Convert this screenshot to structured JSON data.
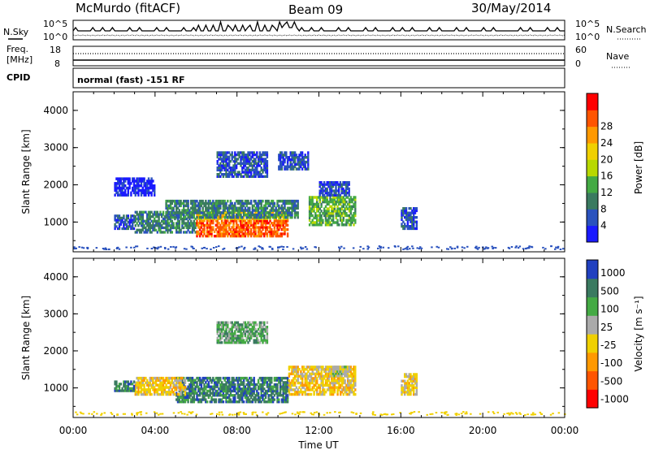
{
  "header": {
    "station": "McMurdo (fitACF)",
    "beam": "Beam 09",
    "date": "30/May/2014",
    "nsky_label": "N.Sky",
    "nsearch_label": "N.Search",
    "freq_label_1": "Freq.",
    "freq_label_2": "[MHz]",
    "nave_label": "Nave",
    "cpid_label": "CPID",
    "cpid_value": "normal (fast) -151 RF",
    "noise_left_top": "10^5",
    "noise_left_bottom": "10^0",
    "noise_right_top": "10^5",
    "noise_right_bottom": "10^0",
    "freq_left_top": "18",
    "freq_left_bottom": "8",
    "nave_right_top": "60",
    "nave_right_bottom": "0"
  },
  "chart_data": [
    {
      "type": "heatmap",
      "name": "power",
      "xlabel": "Time UT",
      "ylabel": "Slant Range [km]",
      "x_range_hours": [
        0,
        24
      ],
      "ylim": [
        200,
        4500
      ],
      "yticks": [
        "1000",
        "2000",
        "3000",
        "4000"
      ],
      "colorbar": {
        "label": "Power [dB]",
        "ticks": [
          "4",
          "8",
          "12",
          "16",
          "20",
          "24",
          "28"
        ],
        "colors": [
          "#1a1aff",
          "#2a52be",
          "#3a7a60",
          "#44aa44",
          "#b8d800",
          "#f0d000",
          "#ff9900",
          "#ff5500",
          "#ff0000"
        ]
      },
      "blobs": [
        {
          "t0": 3.0,
          "t1": 6.0,
          "r0": 700,
          "r1": 1300,
          "level": 2
        },
        {
          "t0": 2.0,
          "t1": 3.0,
          "r0": 800,
          "r1": 1200,
          "level": 1
        },
        {
          "t0": 6.0,
          "t1": 10.5,
          "r0": 600,
          "r1": 1300,
          "level": 7
        },
        {
          "t0": 4.5,
          "t1": 11.0,
          "r0": 1100,
          "r1": 1600,
          "level": 2
        },
        {
          "t0": 11.5,
          "t1": 13.8,
          "r0": 900,
          "r1": 1700,
          "level": 3
        },
        {
          "t0": 12.0,
          "t1": 13.5,
          "r0": 1700,
          "r1": 2100,
          "level": 1
        },
        {
          "t0": 7.0,
          "t1": 9.5,
          "r0": 2200,
          "r1": 2900,
          "level": 1
        },
        {
          "t0": 10.0,
          "t1": 11.5,
          "r0": 2400,
          "r1": 2900,
          "level": 1
        },
        {
          "t0": 16.0,
          "t1": 16.8,
          "r0": 800,
          "r1": 1400,
          "level": 1
        },
        {
          "t0": 2.0,
          "t1": 4.0,
          "r0": 1700,
          "r1": 2200,
          "level": 0
        }
      ]
    },
    {
      "type": "heatmap",
      "name": "velocity",
      "xlabel": "Time UT",
      "ylabel": "Slant Range [km]",
      "x_range_hours": [
        0,
        24
      ],
      "ylim": [
        200,
        4500
      ],
      "yticks": [
        "1000",
        "2000",
        "3000",
        "4000"
      ],
      "xticks": [
        "00:00",
        "04:00",
        "08:00",
        "12:00",
        "16:00",
        "20:00",
        "00:00"
      ],
      "colorbar": {
        "label": "Velocity [m s⁻¹]",
        "ticks": [
          "1000",
          "500",
          "100",
          "25",
          "-25",
          "-100",
          "-500",
          "-1000"
        ],
        "colors": [
          "#2040c0",
          "#3a7a60",
          "#44aa44",
          "#aaaaaa",
          "#f0d000",
          "#ff9900",
          "#ff5500",
          "#ff0000"
        ]
      },
      "blobs": [
        {
          "t0": 5.0,
          "t1": 10.5,
          "r0": 600,
          "r1": 1300,
          "level": 1
        },
        {
          "t0": 10.5,
          "t1": 13.8,
          "r0": 800,
          "r1": 1600,
          "level": 4
        },
        {
          "t0": 3.0,
          "t1": 5.5,
          "r0": 800,
          "r1": 1300,
          "level": 4
        },
        {
          "t0": 2.0,
          "t1": 3.0,
          "r0": 900,
          "r1": 1200,
          "level": 1
        },
        {
          "t0": 12.5,
          "t1": 13.5,
          "r0": 1300,
          "r1": 1600,
          "level": 3
        },
        {
          "t0": 7.0,
          "t1": 9.5,
          "r0": 2200,
          "r1": 2800,
          "level": 2
        },
        {
          "t0": 16.0,
          "t1": 16.8,
          "r0": 800,
          "r1": 1400,
          "level": 4
        }
      ]
    }
  ]
}
